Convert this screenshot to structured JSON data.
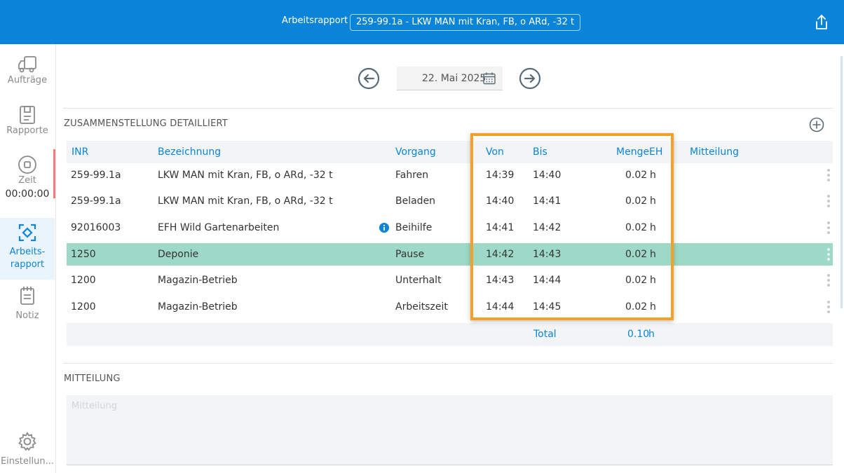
{
  "header": {
    "title": "Arbeitsrapport",
    "selected_vehicle": "259-99.1a - LKW MAN mit Kran, FB, o ARd, -32 t"
  },
  "sidebar": {
    "items": [
      {
        "label": "Aufträge",
        "icon": "truck-icon"
      },
      {
        "label": "Rapporte",
        "icon": "clipboard-icon"
      },
      {
        "label": "Zeit",
        "icon": "stop-icon",
        "time": "00:00:00"
      },
      {
        "label": "Arbeits-\nrapport",
        "icon": "work-report-icon",
        "active": true
      },
      {
        "label": "Notiz",
        "icon": "notepad-icon"
      },
      {
        "label": "Einstellun...",
        "icon": "gear-icon"
      }
    ]
  },
  "date_nav": {
    "date": "22. Mai 2025"
  },
  "summary": {
    "title": "ZUSAMMENSTELLUNG DETAILLIERT",
    "columns": [
      "INR",
      "Bezeichnung",
      "Vorgang",
      "Von",
      "Bis",
      "Menge",
      "EH",
      "Mitteilung"
    ],
    "rows": [
      {
        "inr": "259-99.1a",
        "bezeichnung": "LKW MAN mit Kran, FB, o ARd, -32 t",
        "vorgang": "Fahren",
        "von": "14:39",
        "bis": "14:40",
        "menge": "0.02",
        "eh": "h",
        "info": false,
        "selected": false
      },
      {
        "inr": "259-99.1a",
        "bezeichnung": "LKW MAN mit Kran, FB, o ARd, -32 t",
        "vorgang": "Beladen",
        "von": "14:40",
        "bis": "14:41",
        "menge": "0.02",
        "eh": "h",
        "info": false,
        "selected": false
      },
      {
        "inr": "92016003",
        "bezeichnung": "EFH Wild Gartenarbeiten",
        "vorgang": "Beihilfe",
        "von": "14:41",
        "bis": "14:42",
        "menge": "0.02",
        "eh": "h",
        "info": true,
        "selected": false
      },
      {
        "inr": "1250",
        "bezeichnung": "Deponie",
        "vorgang": "Pause",
        "von": "14:42",
        "bis": "14:43",
        "menge": "0.02",
        "eh": "h",
        "info": false,
        "selected": true
      },
      {
        "inr": "1200",
        "bezeichnung": "Magazin-Betrieb",
        "vorgang": "Unterhalt",
        "von": "14:43",
        "bis": "14:44",
        "menge": "0.02",
        "eh": "h",
        "info": false,
        "selected": false
      },
      {
        "inr": "1200",
        "bezeichnung": "Magazin-Betrieb",
        "vorgang": "Arbeitszeit",
        "von": "14:44",
        "bis": "14:45",
        "menge": "0.02",
        "eh": "h",
        "info": false,
        "selected": false
      }
    ],
    "total": {
      "label": "Total",
      "menge": "0.10",
      "eh": "h"
    }
  },
  "message": {
    "title": "MITTEILUNG",
    "placeholder": "Mitteilung",
    "value": ""
  },
  "colors": {
    "brand": "#0a84d8",
    "selected_row": "#9dd9c6",
    "highlight": "#f5a02a",
    "timer_accent": "#f27a7a"
  }
}
